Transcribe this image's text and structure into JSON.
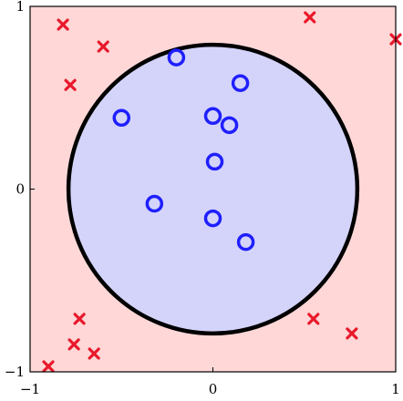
{
  "chart_data": {
    "type": "scatter",
    "title": "",
    "xlabel": "",
    "ylabel": "",
    "xlim": [
      -1,
      1
    ],
    "ylim": [
      -1,
      1
    ],
    "grid": false,
    "x_ticks": [
      "−1",
      "0",
      "1"
    ],
    "y_ticks": [
      "−1",
      "0",
      "1"
    ],
    "x_tick_values": [
      -1,
      0,
      1
    ],
    "y_tick_values": [
      -1,
      0,
      1
    ],
    "decision_boundary": {
      "shape": "circle",
      "center": [
        0,
        0
      ],
      "radius": 0.79,
      "inside_color": "#d4d4fb",
      "outside_color": "#ffd7d7",
      "boundary_color": "#000000"
    },
    "series": [
      {
        "marker": "circle",
        "color": "#1f1fff",
        "points": [
          [
            -0.2,
            0.72
          ],
          [
            0.15,
            0.58
          ],
          [
            -0.5,
            0.39
          ],
          [
            0.0,
            0.4
          ],
          [
            0.09,
            0.35
          ],
          [
            0.01,
            0.15
          ],
          [
            -0.32,
            -0.08
          ],
          [
            0.0,
            -0.16
          ],
          [
            0.18,
            -0.29
          ]
        ]
      },
      {
        "marker": "x",
        "color": "#e8182b",
        "points": [
          [
            -0.82,
            0.9
          ],
          [
            -0.6,
            0.78
          ],
          [
            0.53,
            0.94
          ],
          [
            1.0,
            0.82
          ],
          [
            -0.78,
            0.57
          ],
          [
            -0.73,
            -0.71
          ],
          [
            -0.76,
            -0.85
          ],
          [
            -0.65,
            -0.9
          ],
          [
            -0.9,
            -0.97
          ],
          [
            0.55,
            -0.71
          ],
          [
            0.76,
            -0.79
          ]
        ]
      }
    ]
  }
}
